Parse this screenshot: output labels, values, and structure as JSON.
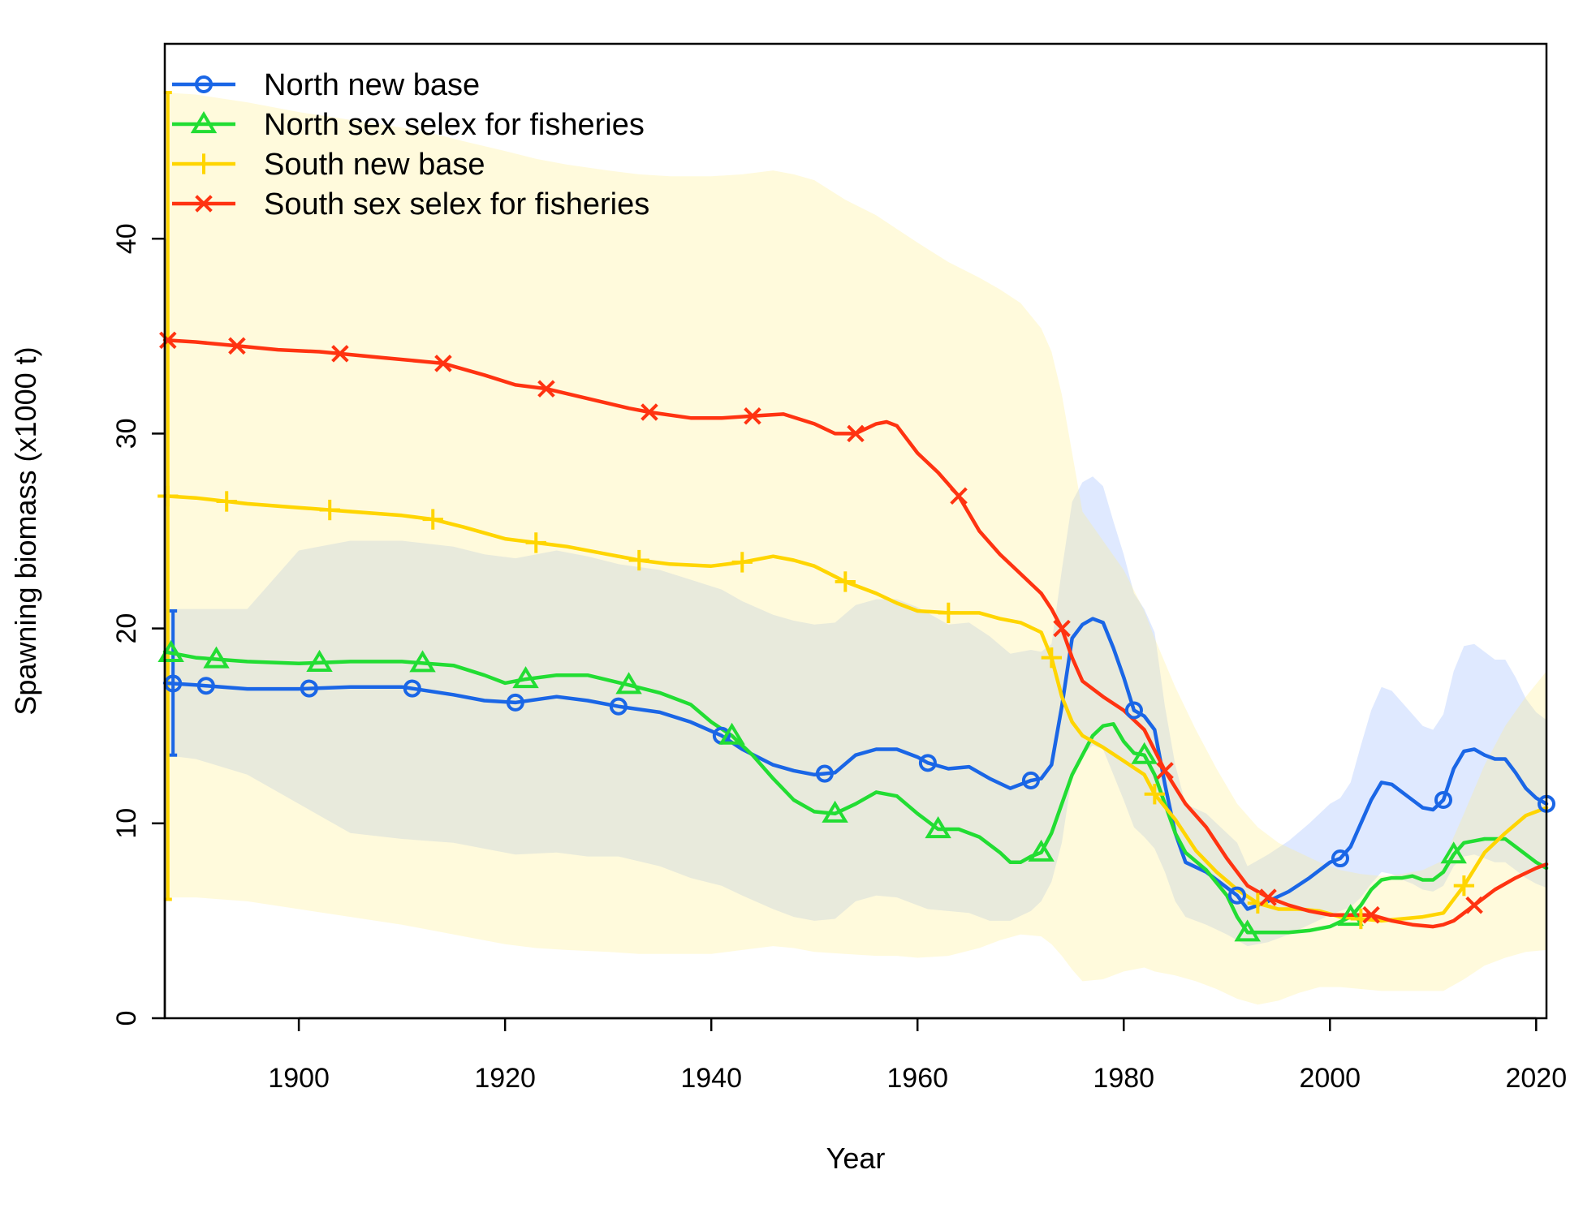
{
  "chart_data": {
    "type": "line",
    "xlabel": "Year",
    "ylabel": "Spawning biomass (x1000 t)",
    "xlim": [
      1887,
      2021
    ],
    "ylim": [
      0,
      50
    ],
    "xticks": [
      1900,
      1920,
      1940,
      1960,
      1980,
      2000,
      2020
    ],
    "yticks": [
      0,
      10,
      20,
      30,
      40
    ],
    "grid": false,
    "legend_position": "top-left",
    "series": [
      {
        "name": "North new base",
        "color": "#1a66e6",
        "marker": "circle",
        "x": [
          1887,
          1890,
          1895,
          1900,
          1905,
          1910,
          1915,
          1918,
          1921,
          1925,
          1928,
          1931,
          1935,
          1938,
          1941,
          1943,
          1946,
          1948,
          1950,
          1952,
          1954,
          1956,
          1958,
          1960,
          1961,
          1963,
          1965,
          1967,
          1969,
          1971,
          1972,
          1973,
          1974,
          1975,
          1976,
          1977,
          1978,
          1979,
          1980,
          1981,
          1982,
          1983,
          1984,
          1985,
          1986,
          1988,
          1990,
          1991,
          1992,
          1994,
          1996,
          1998,
          2000,
          2001,
          2002,
          2003,
          2004,
          2005,
          2006,
          2007,
          2008,
          2009,
          2010,
          2011,
          2012,
          2013,
          2014,
          2015,
          2016,
          2017,
          2018,
          2019,
          2020,
          2021
        ],
        "y": [
          17.2,
          17.1,
          16.9,
          16.9,
          17.0,
          17.0,
          16.6,
          16.3,
          16.2,
          16.5,
          16.3,
          16.0,
          15.7,
          15.2,
          14.5,
          13.8,
          13.0,
          12.7,
          12.5,
          12.6,
          13.5,
          13.8,
          13.8,
          13.4,
          13.1,
          12.8,
          12.9,
          12.3,
          11.8,
          12.2,
          12.3,
          13.0,
          16.0,
          19.5,
          20.2,
          20.5,
          20.3,
          19.0,
          17.5,
          15.8,
          15.5,
          14.8,
          12.0,
          9.5,
          8.0,
          7.5,
          6.7,
          6.3,
          5.6,
          6.0,
          6.5,
          7.2,
          8.0,
          8.2,
          8.8,
          10.0,
          11.2,
          12.1,
          12.0,
          11.6,
          11.2,
          10.8,
          10.7,
          11.2,
          12.8,
          13.7,
          13.8,
          13.5,
          13.3,
          13.3,
          12.6,
          11.8,
          11.3,
          11.0
        ],
        "ci_lower": [
          13.5,
          13.3,
          12.5,
          11.0,
          9.5,
          9.2,
          9.0,
          8.7,
          8.4,
          8.5,
          8.3,
          8.3,
          7.8,
          7.2,
          6.8,
          6.3,
          5.6,
          5.2,
          5.0,
          5.1,
          6.0,
          6.3,
          6.2,
          5.8,
          5.6,
          5.5,
          5.4,
          5.0,
          5.0,
          5.5,
          6.0,
          7.0,
          9.0,
          12.5,
          13.5,
          14.0,
          13.8,
          12.5,
          11.2,
          9.8,
          9.3,
          8.7,
          7.5,
          6.0,
          5.2,
          4.8,
          4.3,
          4.0,
          3.7,
          3.9,
          4.3,
          4.8,
          5.3,
          5.5,
          5.7,
          6.2,
          6.9,
          7.5,
          7.4,
          7.1,
          6.9,
          6.6,
          6.5,
          6.8,
          7.8,
          8.3,
          8.4,
          8.2,
          8.0,
          8.0,
          7.6,
          7.2,
          6.9,
          6.7
        ],
        "ci_upper": [
          21.0,
          21.0,
          21.0,
          24.0,
          24.5,
          24.5,
          24.2,
          23.8,
          23.6,
          24.0,
          23.7,
          23.3,
          23.0,
          22.5,
          22.0,
          21.4,
          20.7,
          20.4,
          20.2,
          20.3,
          21.2,
          21.5,
          21.5,
          21.1,
          20.8,
          20.2,
          20.3,
          19.6,
          18.7,
          18.9,
          18.8,
          19.2,
          23.0,
          26.5,
          27.5,
          27.8,
          27.3,
          25.5,
          23.8,
          21.8,
          21.0,
          19.8,
          16.0,
          13.0,
          11.0,
          10.5,
          9.5,
          9.0,
          7.8,
          8.4,
          9.1,
          10.0,
          11.0,
          11.3,
          12.1,
          14.0,
          15.8,
          17.0,
          16.8,
          16.2,
          15.6,
          15.0,
          14.8,
          15.6,
          17.8,
          19.1,
          19.2,
          18.8,
          18.4,
          18.4,
          17.5,
          16.4,
          15.7,
          15.3
        ],
        "marker_x": [
          1887.8,
          1891,
          1901,
          1911,
          1921,
          1931,
          1941,
          1951,
          1961,
          1971,
          1981,
          1991,
          2001,
          2011,
          2021
        ]
      },
      {
        "name": "North sex selex for fisheries",
        "color": "#22dd33",
        "marker": "triangle",
        "x": [
          1887,
          1890,
          1895,
          1900,
          1905,
          1910,
          1915,
          1918,
          1920,
          1922,
          1925,
          1928,
          1932,
          1935,
          1938,
          1940,
          1942,
          1944,
          1946,
          1948,
          1950,
          1952,
          1954,
          1956,
          1958,
          1960,
          1962,
          1964,
          1966,
          1968,
          1969,
          1970,
          1971,
          1972,
          1973,
          1974,
          1975,
          1976,
          1977,
          1978,
          1979,
          1980,
          1981,
          1982,
          1983,
          1984,
          1985,
          1986,
          1988,
          1990,
          1991,
          1992,
          1994,
          1996,
          1998,
          2000,
          2002,
          2003,
          2004,
          2005,
          2006,
          2007,
          2008,
          2009,
          2010,
          2011,
          2012,
          2013,
          2014,
          2015,
          2016,
          2017,
          2018,
          2019,
          2020,
          2021
        ],
        "y": [
          18.8,
          18.5,
          18.3,
          18.2,
          18.3,
          18.3,
          18.1,
          17.6,
          17.2,
          17.4,
          17.6,
          17.6,
          17.1,
          16.7,
          16.1,
          15.2,
          14.5,
          13.5,
          12.3,
          11.2,
          10.6,
          10.5,
          11.0,
          11.6,
          11.4,
          10.5,
          9.7,
          9.7,
          9.3,
          8.5,
          8.0,
          8.0,
          8.3,
          8.5,
          9.5,
          11.0,
          12.5,
          13.5,
          14.5,
          15.0,
          15.1,
          14.2,
          13.6,
          13.5,
          12.5,
          11.0,
          9.5,
          8.5,
          7.6,
          6.3,
          5.2,
          4.4,
          4.4,
          4.4,
          4.5,
          4.7,
          5.2,
          5.8,
          6.6,
          7.1,
          7.2,
          7.2,
          7.3,
          7.1,
          7.1,
          7.5,
          8.4,
          9.0,
          9.1,
          9.2,
          9.2,
          9.2,
          8.8,
          8.4,
          8.0,
          7.7
        ]
      },
      {
        "name": "South new base",
        "color": "#ffd500",
        "marker": "plus",
        "x": [
          1887,
          1890,
          1895,
          1900,
          1905,
          1910,
          1913,
          1916,
          1920,
          1923,
          1926,
          1930,
          1933,
          1936,
          1940,
          1943,
          1946,
          1948,
          1950,
          1953,
          1956,
          1958,
          1960,
          1963,
          1966,
          1968,
          1970,
          1972,
          1973,
          1974,
          1975,
          1976,
          1978,
          1980,
          1982,
          1983,
          1985,
          1987,
          1989,
          1991,
          1993,
          1995,
          1997,
          1999,
          2001,
          2003,
          2005,
          2007,
          2009,
          2011,
          2013,
          2015,
          2017,
          2019,
          2021
        ],
        "y": [
          26.8,
          26.7,
          26.4,
          26.2,
          26.0,
          25.8,
          25.6,
          25.2,
          24.6,
          24.4,
          24.2,
          23.8,
          23.5,
          23.3,
          23.2,
          23.4,
          23.7,
          23.5,
          23.2,
          22.4,
          21.8,
          21.3,
          20.9,
          20.8,
          20.8,
          20.5,
          20.3,
          19.8,
          18.5,
          16.5,
          15.2,
          14.5,
          13.9,
          13.2,
          12.5,
          11.5,
          10.2,
          8.6,
          7.5,
          6.6,
          5.9,
          5.6,
          5.6,
          5.5,
          5.2,
          5.1,
          5.0,
          5.1,
          5.2,
          5.4,
          6.8,
          8.5,
          9.5,
          10.4,
          10.8
        ],
        "ci_lower": [
          6.2,
          6.2,
          6.0,
          5.6,
          5.2,
          4.8,
          4.5,
          4.2,
          3.8,
          3.6,
          3.5,
          3.4,
          3.3,
          3.3,
          3.3,
          3.5,
          3.7,
          3.6,
          3.4,
          3.3,
          3.2,
          3.2,
          3.1,
          3.2,
          3.6,
          4.0,
          4.3,
          4.2,
          3.8,
          3.2,
          2.5,
          1.9,
          2.0,
          2.4,
          2.6,
          2.4,
          2.2,
          1.9,
          1.5,
          1.0,
          0.7,
          0.9,
          1.3,
          1.6,
          1.6,
          1.5,
          1.4,
          1.4,
          1.4,
          1.4,
          2.0,
          2.7,
          3.1,
          3.4,
          3.5
        ],
        "ci_upper": [
          47.5,
          47.4,
          47.0,
          46.5,
          46.1,
          45.7,
          45.4,
          45.0,
          44.5,
          44.1,
          43.8,
          43.5,
          43.3,
          43.2,
          43.2,
          43.3,
          43.5,
          43.3,
          43.0,
          42.0,
          41.2,
          40.5,
          39.8,
          38.8,
          38.0,
          37.4,
          36.7,
          35.4,
          34.2,
          32.0,
          29.0,
          26.0,
          24.5,
          23.0,
          20.9,
          19.5,
          17.0,
          14.8,
          12.8,
          11.0,
          9.8,
          9.0,
          8.5,
          8.0,
          7.6,
          7.4,
          7.3,
          7.4,
          7.6,
          8.1,
          10.5,
          13.0,
          15.0,
          16.5,
          17.8
        ]
      },
      {
        "name": "South sex selex for fisheries",
        "color": "#ff3311",
        "marker": "x",
        "x": [
          1887,
          1890,
          1894,
          1898,
          1902,
          1904,
          1908,
          1912,
          1914,
          1918,
          1921,
          1924,
          1928,
          1932,
          1934,
          1938,
          1941,
          1944,
          1947,
          1950,
          1952,
          1954,
          1956,
          1957,
          1958,
          1960,
          1962,
          1964,
          1966,
          1968,
          1970,
          1972,
          1973,
          1974,
          1975,
          1976,
          1978,
          1980,
          1982,
          1984,
          1986,
          1988,
          1990,
          1992,
          1994,
          1996,
          1998,
          2000,
          2002,
          2004,
          2006,
          2008,
          2010,
          2011,
          2012,
          2014,
          2016,
          2018,
          2020,
          2021
        ],
        "y": [
          34.8,
          34.7,
          34.5,
          34.3,
          34.2,
          34.1,
          33.9,
          33.7,
          33.6,
          33.0,
          32.5,
          32.3,
          31.8,
          31.3,
          31.1,
          30.8,
          30.8,
          30.9,
          31.0,
          30.5,
          30.0,
          30.0,
          30.5,
          30.6,
          30.4,
          29.0,
          28.0,
          26.8,
          25.0,
          23.8,
          22.8,
          21.8,
          21.0,
          20.0,
          18.5,
          17.3,
          16.5,
          15.8,
          14.8,
          12.7,
          11.0,
          9.8,
          8.2,
          6.8,
          6.2,
          5.8,
          5.5,
          5.3,
          5.3,
          5.3,
          5.0,
          4.8,
          4.7,
          4.8,
          5.0,
          5.8,
          6.6,
          7.2,
          7.7,
          7.9
        ],
        "marker_x": [
          1887.3,
          1894,
          1904,
          1914,
          1924,
          1934,
          1944,
          1954,
          1964,
          1974,
          1984,
          1994,
          2004,
          2014
        ]
      }
    ],
    "initial_error_bars": [
      {
        "series": "North new base",
        "x": 1887.8,
        "lower": 13.5,
        "upper": 20.9
      },
      {
        "series": "South new base",
        "x": 1887.3,
        "lower": 6.1,
        "upper": 47.5
      }
    ]
  }
}
